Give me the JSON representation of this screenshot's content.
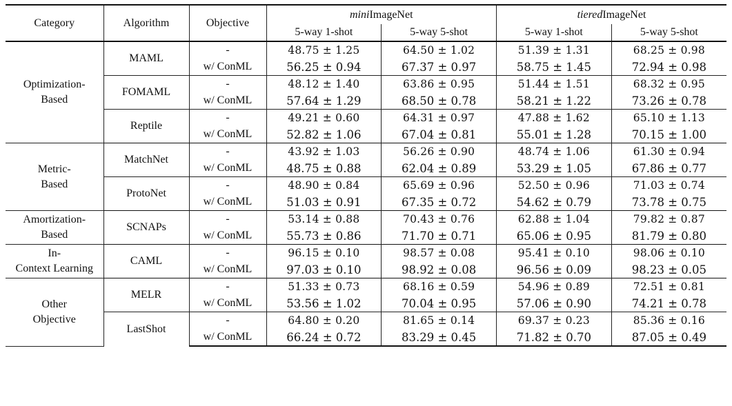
{
  "header": {
    "category": "Category",
    "algorithm": "Algorithm",
    "objective": "Objective",
    "mini_prefix": "mini",
    "mini_suffix": "ImageNet",
    "tiered_prefix": "tiered",
    "tiered_suffix": "ImageNet",
    "mini_1shot": "5-way 1-shot",
    "mini_5shot": "5-way 5-shot",
    "tiered_1shot": "5-way 1-shot",
    "tiered_5shot": "5-way 5-shot"
  },
  "objectives": {
    "base": "-",
    "conml": "w/ ConML"
  },
  "groups": [
    {
      "category": "Optimization-Based",
      "rows": [
        {
          "algorithm": "MAML",
          "base": [
            "48.75 ± 1.25",
            "64.50 ± 1.02",
            "51.39 ± 1.31",
            "68.25 ± 0.98"
          ],
          "conml": [
            "56.25 ± 0.94",
            "67.37 ± 0.97",
            "58.75 ± 1.45",
            "72.94 ± 0.98"
          ]
        },
        {
          "algorithm": "FOMAML",
          "base": [
            "48.12 ± 1.40",
            "63.86 ± 0.95",
            "51.44 ± 1.51",
            "68.32 ± 0.95"
          ],
          "conml": [
            "57.64 ± 1.29",
            "68.50 ± 0.78",
            "58.21 ± 1.22",
            "73.26 ± 0.78"
          ]
        },
        {
          "algorithm": "Reptile",
          "base": [
            "49.21 ± 0.60",
            "64.31 ± 0.97",
            "47.88 ± 1.62",
            "65.10 ± 1.13"
          ],
          "conml": [
            "52.82 ± 1.06",
            "67.04 ± 0.81",
            "55.01 ± 1.28",
            "70.15 ± 1.00"
          ]
        }
      ]
    },
    {
      "category": "Metric-Based",
      "rows": [
        {
          "algorithm": "MatchNet",
          "base": [
            "43.92 ± 1.03",
            "56.26 ± 0.90",
            "48.74 ± 1.06",
            "61.30 ± 0.94"
          ],
          "conml": [
            "48.75 ± 0.88",
            "62.04 ± 0.89",
            "53.29 ± 1.05",
            "67.86 ± 0.77"
          ]
        },
        {
          "algorithm": "ProtoNet",
          "base": [
            "48.90 ± 0.84",
            "65.69 ± 0.96",
            "52.50 ± 0.96",
            "71.03 ± 0.74"
          ],
          "conml": [
            "51.03 ± 0.91",
            "67.35 ± 0.72",
            "54.62 ± 0.79",
            "73.78 ± 0.75"
          ]
        }
      ]
    },
    {
      "category": "Amortization-Based",
      "rows": [
        {
          "algorithm": "SCNAPs",
          "base": [
            "53.14 ± 0.88",
            "70.43 ± 0.76",
            "62.88 ± 1.04",
            "79.82 ± 0.87"
          ],
          "conml": [
            "55.73 ± 0.86",
            "71.70 ± 0.71",
            "65.06 ± 0.95",
            "81.79 ± 0.80"
          ]
        }
      ]
    },
    {
      "category": "In-Context Learning",
      "rows": [
        {
          "algorithm": "CAML",
          "base": [
            "96.15 ± 0.10",
            "98.57 ± 0.08",
            "95.41 ± 0.10",
            "98.06 ± 0.10"
          ],
          "conml": [
            "97.03 ± 0.10",
            "98.92 ± 0.08",
            "96.56 ± 0.09",
            "98.23 ± 0.05"
          ]
        }
      ]
    },
    {
      "category": "Other Objective",
      "rows": [
        {
          "algorithm": "MELR",
          "base": [
            "51.33 ± 0.73",
            "68.16 ± 0.59",
            "54.96 ± 0.89",
            "72.51 ± 0.81"
          ],
          "conml": [
            "53.56 ± 1.02",
            "70.04 ± 0.95",
            "57.06 ± 0.90",
            "74.21 ± 0.78"
          ]
        },
        {
          "algorithm": "LastShot",
          "base": [
            "64.80 ± 0.20",
            "81.65 ± 0.14",
            "69.37 ± 0.23",
            "85.36 ± 0.16"
          ],
          "conml": [
            "66.24 ± 0.72",
            "83.29 ± 0.45",
            "71.82 ± 0.70",
            "87.05 ± 0.49"
          ]
        }
      ]
    }
  ]
}
